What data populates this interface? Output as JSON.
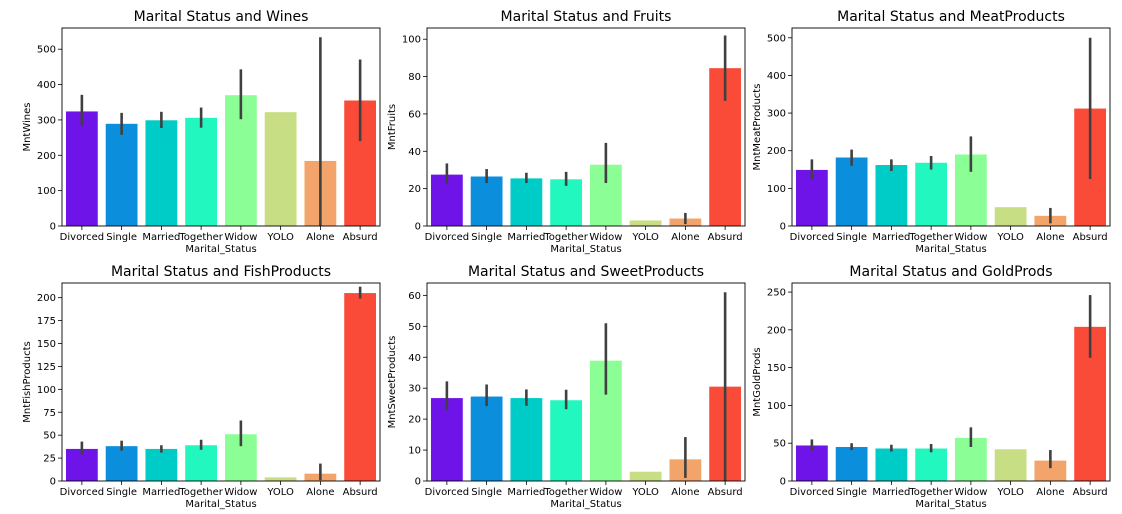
{
  "chart_data": [
    {
      "type": "bar",
      "title": "Marital Status and Wines",
      "xlabel": "Marital_Status",
      "ylabel": "MntWines",
      "categories": [
        "Divorced",
        "Single",
        "Married",
        "Together",
        "Widow",
        "YOLO",
        "Alone",
        "Absurd"
      ],
      "values": [
        324,
        289,
        299,
        306,
        370,
        322,
        184,
        355
      ],
      "error_low": [
        283,
        258,
        277,
        278,
        302,
        322,
        0,
        240
      ],
      "error_high": [
        371,
        320,
        323,
        335,
        443,
        322,
        534,
        471
      ],
      "yticks": [
        0,
        100,
        200,
        300,
        400,
        500
      ],
      "ylim": [
        0,
        560
      ]
    },
    {
      "type": "bar",
      "title": "Marital Status and Fruits",
      "xlabel": "Marital_Status",
      "ylabel": "MntFruits",
      "categories": [
        "Divorced",
        "Single",
        "Married",
        "Together",
        "Widow",
        "YOLO",
        "Alone",
        "Absurd"
      ],
      "values": [
        27.5,
        26.5,
        25.5,
        25,
        32.8,
        3,
        4,
        84.5
      ],
      "error_low": [
        22.5,
        23,
        23,
        21.5,
        23,
        3,
        1,
        67
      ],
      "error_high": [
        33.5,
        30.5,
        28.5,
        29,
        44.5,
        3,
        7,
        102
      ],
      "yticks": [
        0,
        20,
        40,
        60,
        80,
        100
      ],
      "ylim": [
        0,
        106
      ]
    },
    {
      "type": "bar",
      "title": "Marital Status and MeatProducts",
      "xlabel": "Marital_Status",
      "ylabel": "MntMeatProducts",
      "categories": [
        "Divorced",
        "Single",
        "Married",
        "Together",
        "Widow",
        "YOLO",
        "Alone",
        "Absurd"
      ],
      "values": [
        149,
        182,
        162,
        168,
        190,
        50,
        27,
        312
      ],
      "error_low": [
        123,
        160,
        146,
        150,
        144,
        50,
        7,
        125
      ],
      "error_high": [
        177,
        203,
        177,
        186,
        238,
        50,
        48,
        500
      ],
      "yticks": [
        0,
        100,
        200,
        300,
        400,
        500
      ],
      "ylim": [
        0,
        526
      ]
    },
    {
      "type": "bar",
      "title": "Marital Status and FishProducts",
      "xlabel": "Marital_Status",
      "ylabel": "MntFishProducts",
      "categories": [
        "Divorced",
        "Single",
        "Married",
        "Together",
        "Widow",
        "YOLO",
        "Alone",
        "Absurd"
      ],
      "values": [
        35,
        38,
        35,
        39,
        51,
        4,
        8,
        205
      ],
      "error_low": [
        29,
        33,
        31,
        34,
        38,
        4,
        1,
        199
      ],
      "error_high": [
        43,
        44,
        39,
        45,
        66,
        4,
        19,
        212
      ],
      "yticks": [
        0,
        25,
        50,
        75,
        100,
        125,
        150,
        175,
        200
      ],
      "ylim": [
        0,
        216
      ]
    },
    {
      "type": "bar",
      "title": "Marital Status and SweetProducts",
      "xlabel": "Marital_Status",
      "ylabel": "MntSweetProducts",
      "categories": [
        "Divorced",
        "Single",
        "Married",
        "Together",
        "Widow",
        "YOLO",
        "Alone",
        "Absurd"
      ],
      "values": [
        26.8,
        27.3,
        26.8,
        26.1,
        38.9,
        3,
        7,
        30.5
      ],
      "error_low": [
        22.8,
        24.2,
        24.3,
        23.2,
        27.9,
        3,
        1,
        0
      ],
      "error_high": [
        32.2,
        31.2,
        29.6,
        29.5,
        51,
        3,
        14.2,
        61
      ],
      "yticks": [
        0,
        10,
        20,
        30,
        40,
        50,
        60
      ],
      "ylim": [
        0,
        64
      ]
    },
    {
      "type": "bar",
      "title": "Marital Status and GoldProds",
      "xlabel": "Marital_Status",
      "ylabel": "MntGoldProds",
      "categories": [
        "Divorced",
        "Single",
        "Married",
        "Together",
        "Widow",
        "YOLO",
        "Alone",
        "Absurd"
      ],
      "values": [
        47,
        45,
        43,
        43,
        57,
        42,
        27,
        204
      ],
      "error_low": [
        40,
        41,
        39,
        38,
        45,
        42,
        17,
        163
      ],
      "error_high": [
        55,
        50,
        48,
        49,
        71,
        42,
        41,
        246
      ],
      "yticks": [
        0,
        50,
        100,
        150,
        200,
        250
      ],
      "ylim": [
        0,
        262
      ]
    }
  ],
  "colors": {
    "bars": [
      "#6f14e9",
      "#0b8fdc",
      "#00ccc7",
      "#21f7be",
      "#8bff95",
      "#c8de85",
      "#f3a46a",
      "#f94b37"
    ],
    "errorbar": "#404040",
    "axis": "#000000"
  }
}
